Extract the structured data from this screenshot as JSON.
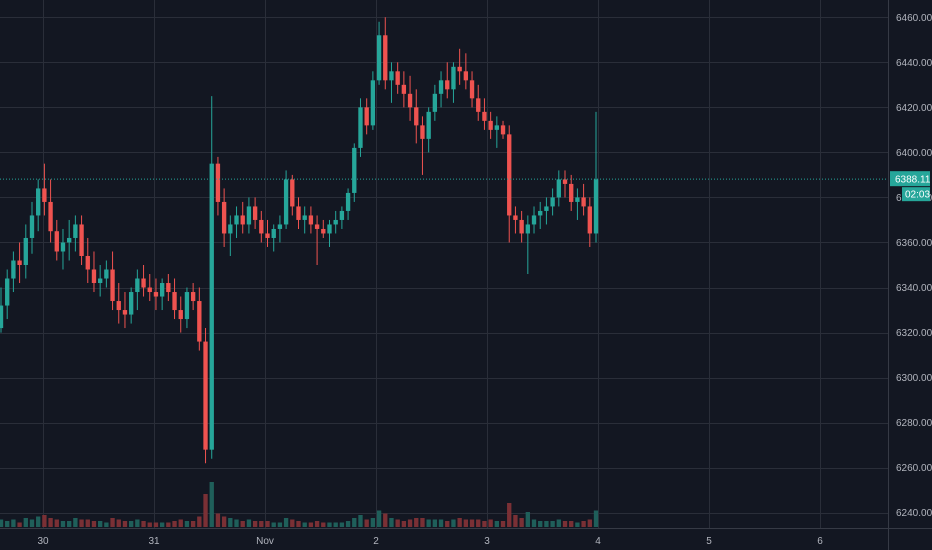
{
  "chart_data": {
    "type": "candlestick",
    "colors": {
      "background": "#131722",
      "grid": "#2a2e39",
      "up": "#26a69a",
      "down": "#ef5350",
      "up_volume": "#1f5f5a",
      "down_volume": "#7a3035",
      "axis_text": "#b2b5be",
      "price_line": "#26a69a"
    },
    "y_axis": {
      "ticks": [
        6460,
        6440,
        6420,
        6400,
        6380,
        6360,
        6340,
        6320,
        6300,
        6280,
        6260,
        6240
      ],
      "tick_labels": [
        "6460.00",
        "6440.00",
        "6420.00",
        "6400.00",
        "6380.00",
        "6360.00",
        "6340.00",
        "6320.00",
        "6300.00",
        "6280.00",
        "6260.00",
        "6240.00"
      ],
      "range": [
        6235,
        6465
      ]
    },
    "x_axis": {
      "labels": [
        {
          "text": "30",
          "pos": 0.3
        },
        {
          "text": "31",
          "pos": 1.3
        },
        {
          "text": "Nov",
          "pos": 2.3
        },
        {
          "text": "2",
          "pos": 3.3
        },
        {
          "text": "3",
          "pos": 4.3
        },
        {
          "text": "4",
          "pos": 5.3
        },
        {
          "text": "5",
          "pos": 6.3
        },
        {
          "text": "6",
          "pos": 7.3
        }
      ]
    },
    "last_price": {
      "value": 6388.11,
      "label": "6388.11",
      "countdown": "02:03"
    },
    "candles": [
      [
        6322,
        6340,
        6320,
        6332,
        5
      ],
      [
        6332,
        6348,
        6326,
        6344,
        4
      ],
      [
        6344,
        6356,
        6338,
        6352,
        5
      ],
      [
        6352,
        6360,
        6342,
        6350,
        3
      ],
      [
        6350,
        6368,
        6344,
        6362,
        6
      ],
      [
        6362,
        6378,
        6355,
        6372,
        5
      ],
      [
        6372,
        6388,
        6365,
        6384,
        7
      ],
      [
        6384,
        6395,
        6372,
        6378,
        8
      ],
      [
        6378,
        6388,
        6360,
        6365,
        6
      ],
      [
        6365,
        6370,
        6352,
        6356,
        5
      ],
      [
        6356,
        6366,
        6348,
        6360,
        4
      ],
      [
        6360,
        6370,
        6352,
        6362,
        4
      ],
      [
        6362,
        6372,
        6356,
        6368,
        6
      ],
      [
        6368,
        6372,
        6350,
        6354,
        5
      ],
      [
        6354,
        6362,
        6342,
        6348,
        5
      ],
      [
        6348,
        6356,
        6338,
        6342,
        4
      ],
      [
        6342,
        6350,
        6336,
        6344,
        4
      ],
      [
        6344,
        6352,
        6340,
        6348,
        3
      ],
      [
        6348,
        6356,
        6330,
        6334,
        6
      ],
      [
        6334,
        6342,
        6324,
        6330,
        5
      ],
      [
        6330,
        6338,
        6322,
        6328,
        4
      ],
      [
        6328,
        6340,
        6324,
        6338,
        4
      ],
      [
        6338,
        6348,
        6330,
        6344,
        5
      ],
      [
        6344,
        6350,
        6336,
        6340,
        4
      ],
      [
        6340,
        6346,
        6334,
        6338,
        3
      ],
      [
        6338,
        6344,
        6330,
        6336,
        3
      ],
      [
        6336,
        6344,
        6330,
        6342,
        3
      ],
      [
        6342,
        6346,
        6334,
        6338,
        3
      ],
      [
        6338,
        6344,
        6326,
        6330,
        4
      ],
      [
        6330,
        6336,
        6320,
        6326,
        5
      ],
      [
        6326,
        6340,
        6322,
        6338,
        4
      ],
      [
        6338,
        6342,
        6330,
        6334,
        4
      ],
      [
        6334,
        6340,
        6312,
        6316,
        7
      ],
      [
        6316,
        6322,
        6262,
        6268,
        22
      ],
      [
        6268,
        6425,
        6264,
        6395,
        30
      ],
      [
        6395,
        6398,
        6372,
        6378,
        9
      ],
      [
        6378,
        6384,
        6358,
        6364,
        7
      ],
      [
        6364,
        6372,
        6354,
        6368,
        6
      ],
      [
        6368,
        6376,
        6362,
        6372,
        5
      ],
      [
        6372,
        6378,
        6364,
        6368,
        4
      ],
      [
        6368,
        6380,
        6364,
        6376,
        5
      ],
      [
        6376,
        6380,
        6366,
        6370,
        4
      ],
      [
        6370,
        6374,
        6360,
        6364,
        4
      ],
      [
        6364,
        6370,
        6358,
        6362,
        4
      ],
      [
        6362,
        6368,
        6356,
        6366,
        3
      ],
      [
        6366,
        6372,
        6360,
        6368,
        3
      ],
      [
        6368,
        6392,
        6366,
        6388,
        6
      ],
      [
        6388,
        6390,
        6372,
        6376,
        5
      ],
      [
        6376,
        6380,
        6366,
        6370,
        4
      ],
      [
        6370,
        6376,
        6364,
        6372,
        3
      ],
      [
        6372,
        6376,
        6364,
        6368,
        3
      ],
      [
        6368,
        6372,
        6350,
        6366,
        4
      ],
      [
        6366,
        6370,
        6362,
        6364,
        3
      ],
      [
        6364,
        6370,
        6358,
        6368,
        3
      ],
      [
        6368,
        6374,
        6364,
        6370,
        3
      ],
      [
        6370,
        6376,
        6366,
        6374,
        3
      ],
      [
        6374,
        6384,
        6370,
        6382,
        4
      ],
      [
        6382,
        6404,
        6378,
        6402,
        6
      ],
      [
        6402,
        6424,
        6398,
        6420,
        8
      ],
      [
        6420,
        6424,
        6408,
        6412,
        5
      ],
      [
        6412,
        6436,
        6410,
        6432,
        6
      ],
      [
        6432,
        6458,
        6430,
        6452,
        11
      ],
      [
        6452,
        6460,
        6428,
        6432,
        9
      ],
      [
        6432,
        6440,
        6422,
        6436,
        6
      ],
      [
        6436,
        6440,
        6426,
        6430,
        5
      ],
      [
        6430,
        6436,
        6420,
        6426,
        4
      ],
      [
        6426,
        6434,
        6414,
        6420,
        5
      ],
      [
        6420,
        6428,
        6404,
        6412,
        6
      ],
      [
        6412,
        6416,
        6390,
        6406,
        6
      ],
      [
        6406,
        6420,
        6400,
        6418,
        5
      ],
      [
        6418,
        6430,
        6414,
        6426,
        5
      ],
      [
        6426,
        6436,
        6420,
        6432,
        5
      ],
      [
        6432,
        6440,
        6424,
        6428,
        4
      ],
      [
        6428,
        6440,
        6422,
        6438,
        5
      ],
      [
        6438,
        6446,
        6430,
        6436,
        6
      ],
      [
        6436,
        6444,
        6428,
        6432,
        5
      ],
      [
        6432,
        6436,
        6420,
        6424,
        5
      ],
      [
        6424,
        6430,
        6414,
        6418,
        5
      ],
      [
        6418,
        6424,
        6410,
        6414,
        4
      ],
      [
        6414,
        6418,
        6406,
        6410,
        5
      ],
      [
        6410,
        6416,
        6402,
        6412,
        4
      ],
      [
        6412,
        6414,
        6406,
        6408,
        4
      ],
      [
        6408,
        6412,
        6360,
        6372,
        16
      ],
      [
        6372,
        6376,
        6364,
        6370,
        8
      ],
      [
        6370,
        6374,
        6360,
        6364,
        6
      ],
      [
        6364,
        6372,
        6346,
        6368,
        10
      ],
      [
        6368,
        6376,
        6364,
        6372,
        5
      ],
      [
        6372,
        6378,
        6366,
        6374,
        4
      ],
      [
        6374,
        6380,
        6368,
        6376,
        4
      ],
      [
        6376,
        6384,
        6372,
        6380,
        4
      ],
      [
        6380,
        6392,
        6376,
        6388,
        5
      ],
      [
        6388,
        6392,
        6380,
        6386,
        4
      ],
      [
        6386,
        6390,
        6374,
        6378,
        4
      ],
      [
        6378,
        6384,
        6370,
        6380,
        3
      ],
      [
        6380,
        6386,
        6372,
        6376,
        4
      ],
      [
        6376,
        6380,
        6358,
        6364,
        5
      ],
      [
        6364,
        6418,
        6360,
        6388,
        11
      ]
    ]
  }
}
